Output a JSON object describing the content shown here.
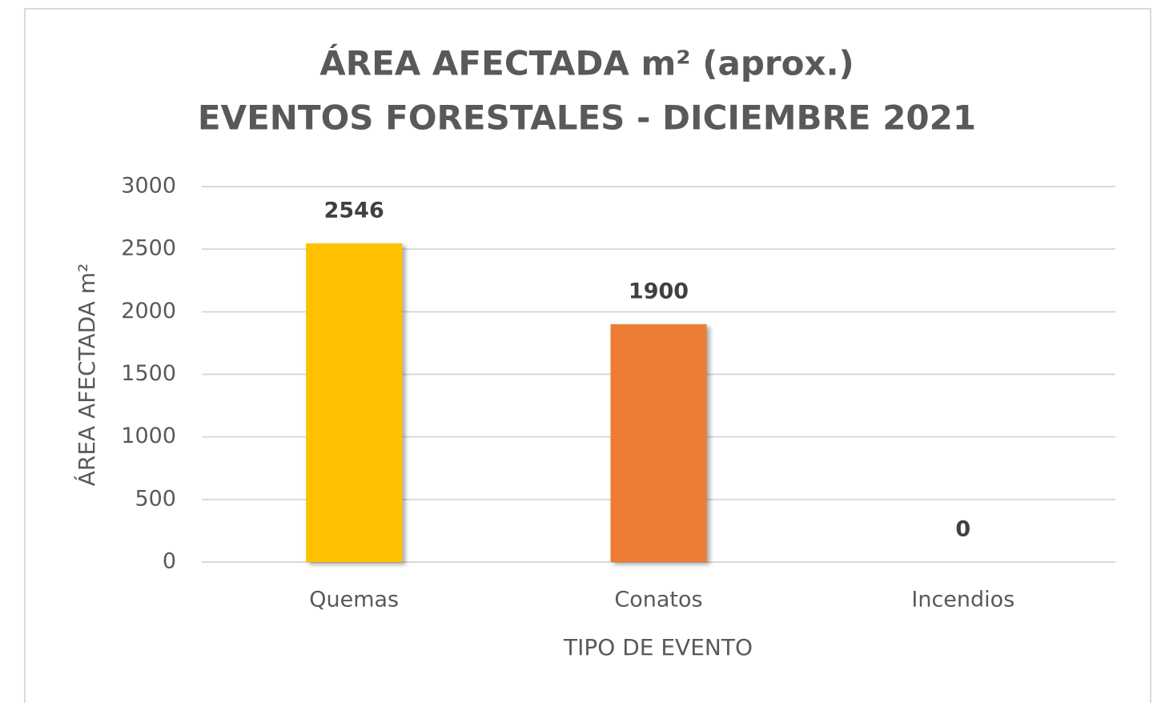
{
  "chart_data": {
    "type": "bar",
    "title": [
      "ÁREA AFECTADA m² (aprox.)",
      "EVENTOS FORESTALES - DICIEMBRE 2021"
    ],
    "x_label": "TIPO DE EVENTO",
    "y_label": "ÁREA AFECTADA m²",
    "categories": [
      "Quemas",
      "Conatos",
      "Incendios"
    ],
    "values": [
      2546,
      1900,
      0
    ],
    "colors": [
      "#ffc000",
      "#ed7d31",
      "#a5a5a5"
    ],
    "ylim": [
      0,
      3000
    ],
    "yticks": [
      0,
      500,
      1000,
      1500,
      2000,
      2500,
      3000
    ],
    "grid": true
  }
}
